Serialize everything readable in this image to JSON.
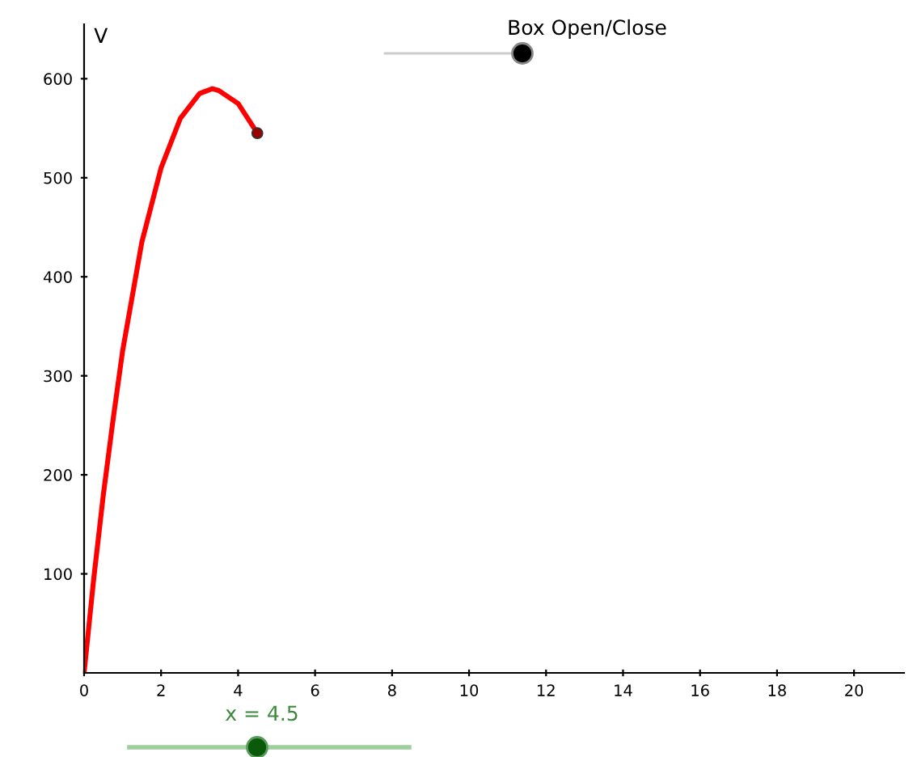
{
  "chart_data": {
    "type": "line",
    "ylabel": "V",
    "x": [
      0,
      0.25,
      0.5,
      0.75,
      1,
      1.5,
      2,
      2.5,
      3,
      3.33,
      3.5,
      4,
      4.5
    ],
    "series": [
      {
        "color": "#ff0000",
        "values": [
          0,
          95,
          180,
          255,
          325,
          435,
          510,
          560,
          585,
          590,
          588,
          575,
          545
        ]
      },
      {
        "type": "scatter",
        "color": "#990000",
        "x": [
          4.5
        ],
        "values": [
          545
        ]
      }
    ],
    "xlim": [
      0,
      21.3
    ],
    "ylim": [
      0,
      655
    ],
    "xticks": [
      0,
      2,
      4,
      6,
      8,
      10,
      12,
      14,
      16,
      18,
      20
    ],
    "yticks": [
      100,
      200,
      300,
      400,
      500,
      600
    ],
    "grid": false,
    "legend": false,
    "annotations": [
      "Box Open/Close",
      "x = 4.5"
    ]
  }
}
